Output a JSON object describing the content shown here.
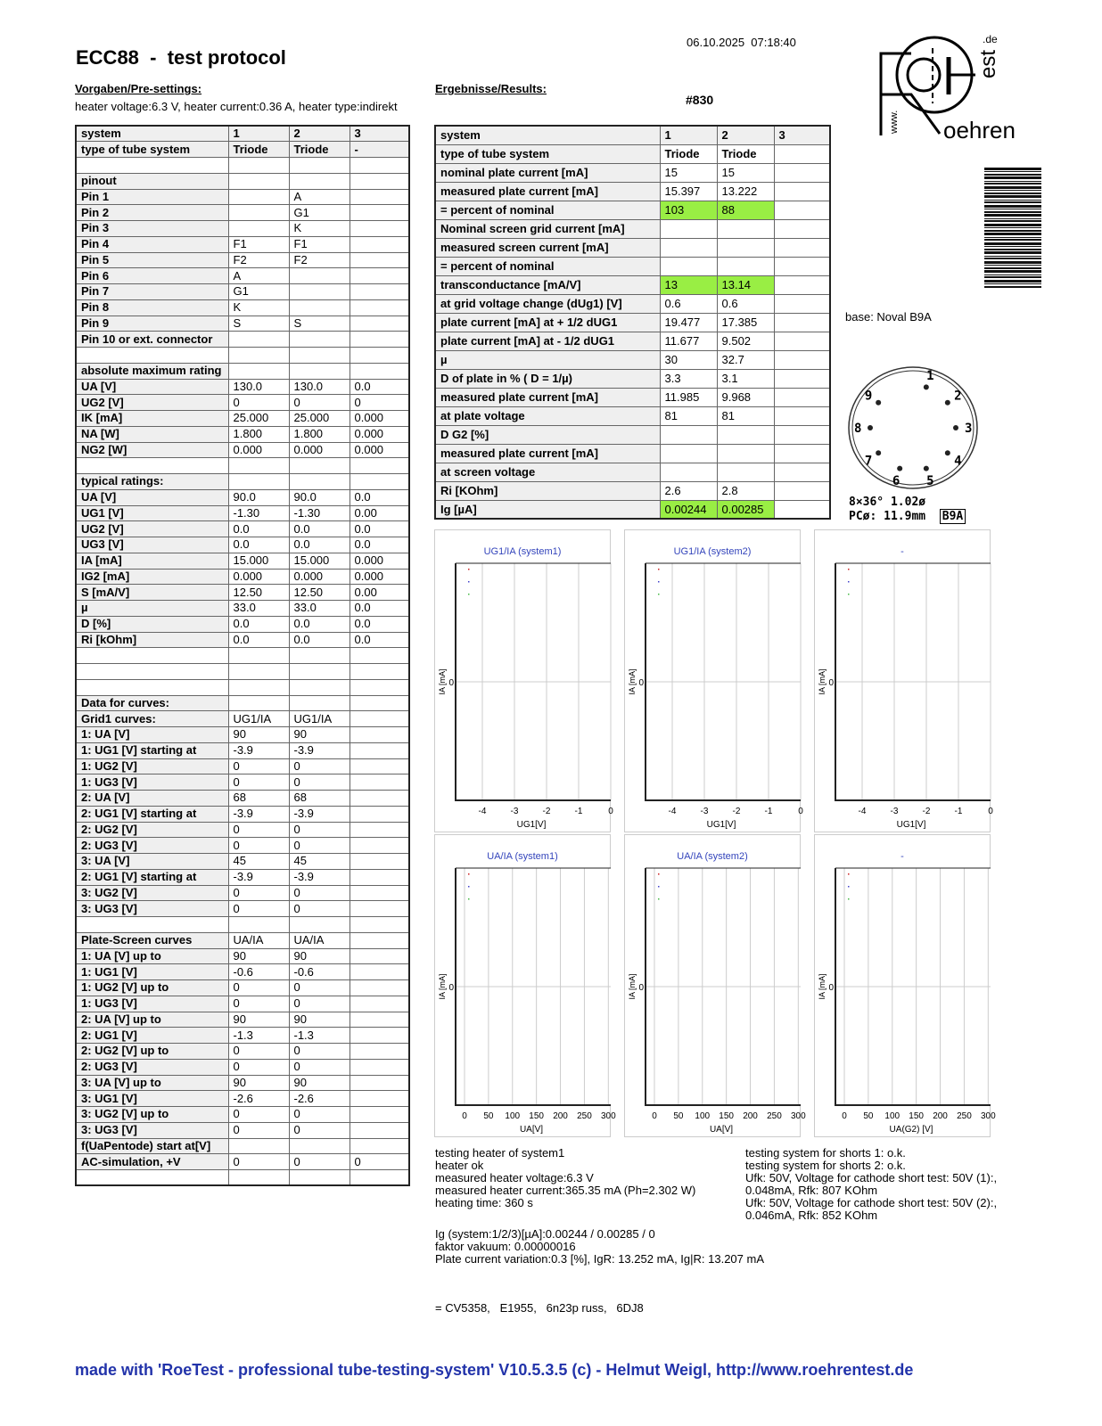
{
  "header": {
    "title": "ECC88  -  test protocol",
    "datetime": "06.10.2025  07:18:40",
    "serial": "#830"
  },
  "presettings": {
    "heading": "Vorgaben/Pre-settings:",
    "line": "heater voltage:6.3 V, heater current:0.36 A, heater type:indirekt"
  },
  "results_heading": "Ergebnisse/Results:",
  "left_table": [
    [
      "system",
      "1",
      "2",
      "3"
    ],
    [
      "type of tube system",
      "Triode",
      "Triode",
      "-"
    ],
    [
      "",
      "",
      "",
      ""
    ],
    [
      "pinout",
      "",
      "",
      ""
    ],
    [
      "Pin 1",
      "",
      "A",
      ""
    ],
    [
      "Pin 2",
      "",
      "G1",
      ""
    ],
    [
      "Pin 3",
      "",
      "K",
      ""
    ],
    [
      "Pin 4",
      "F1",
      "F1",
      ""
    ],
    [
      "Pin 5",
      "F2",
      "F2",
      ""
    ],
    [
      "Pin 6",
      "A",
      "",
      ""
    ],
    [
      "Pin 7",
      "G1",
      "",
      ""
    ],
    [
      "Pin 8",
      "K",
      "",
      ""
    ],
    [
      "Pin 9",
      "S",
      "S",
      ""
    ],
    [
      "Pin 10 or ext. connector",
      "",
      "",
      ""
    ],
    [
      "",
      "",
      "",
      ""
    ],
    [
      "absolute maximum rating",
      "",
      "",
      ""
    ],
    [
      "UA [V]",
      "130.0",
      "130.0",
      "0.0"
    ],
    [
      "UG2 [V]",
      "0",
      "0",
      "0"
    ],
    [
      "IK [mA]",
      "25.000",
      "25.000",
      "0.000"
    ],
    [
      "NA [W]",
      "1.800",
      "1.800",
      "0.000"
    ],
    [
      "NG2 [W]",
      "0.000",
      "0.000",
      "0.000"
    ],
    [
      "",
      "",
      "",
      ""
    ],
    [
      "typical ratings:",
      "",
      "",
      ""
    ],
    [
      "UA [V]",
      "90.0",
      "90.0",
      "0.0"
    ],
    [
      "UG1 [V]",
      "-1.30",
      "-1.30",
      "0.00"
    ],
    [
      "UG2 [V]",
      "0.0",
      "0.0",
      "0.0"
    ],
    [
      "UG3 [V]",
      "0.0",
      "0.0",
      "0.0"
    ],
    [
      "IA [mA]",
      "15.000",
      "15.000",
      "0.000"
    ],
    [
      "IG2 [mA]",
      "0.000",
      "0.000",
      "0.000"
    ],
    [
      "S [mA/V]",
      "12.50",
      "12.50",
      "0.00"
    ],
    [
      "µ",
      "33.0",
      "33.0",
      "0.0"
    ],
    [
      "D [%]",
      "0.0",
      "0.0",
      "0.0"
    ],
    [
      "Ri [kOhm]",
      "0.0",
      "0.0",
      "0.0"
    ],
    [
      "",
      "",
      "",
      ""
    ],
    [
      "",
      "",
      "",
      ""
    ],
    [
      "",
      "",
      "",
      ""
    ],
    [
      "Data for curves:",
      "",
      "",
      ""
    ],
    [
      "Grid1 curves:",
      "UG1/IA",
      "UG1/IA",
      ""
    ],
    [
      "1: UA [V]",
      "90",
      "90",
      ""
    ],
    [
      "1: UG1 [V] starting at",
      "-3.9",
      "-3.9",
      ""
    ],
    [
      "1: UG2 [V]",
      "0",
      "0",
      ""
    ],
    [
      "1: UG3 [V]",
      "0",
      "0",
      ""
    ],
    [
      "2: UA [V]",
      "68",
      "68",
      ""
    ],
    [
      "2: UG1 [V] starting at",
      "-3.9",
      "-3.9",
      ""
    ],
    [
      "2: UG2 [V]",
      "0",
      "0",
      ""
    ],
    [
      "2: UG3 [V]",
      "0",
      "0",
      ""
    ],
    [
      "3: UA [V]",
      "45",
      "45",
      ""
    ],
    [
      "2: UG1 [V] starting at",
      "-3.9",
      "-3.9",
      ""
    ],
    [
      "3: UG2 [V]",
      "0",
      "0",
      ""
    ],
    [
      "3: UG3 [V]",
      "0",
      "0",
      ""
    ],
    [
      "",
      "",
      "",
      ""
    ],
    [
      "Plate-Screen curves",
      "UA/IA",
      "UA/IA",
      ""
    ],
    [
      "1: UA [V] up to",
      "90",
      "90",
      ""
    ],
    [
      "1: UG1 [V]",
      "-0.6",
      "-0.6",
      ""
    ],
    [
      "1: UG2 [V] up to",
      "0",
      "0",
      ""
    ],
    [
      "1: UG3 [V]",
      "0",
      "0",
      ""
    ],
    [
      "2: UA [V] up to",
      "90",
      "90",
      ""
    ],
    [
      "2: UG1 [V]",
      "-1.3",
      "-1.3",
      ""
    ],
    [
      "2: UG2 [V] up to",
      "0",
      "0",
      ""
    ],
    [
      "2: UG3 [V]",
      "0",
      "0",
      ""
    ],
    [
      "3: UA [V] up to",
      "90",
      "90",
      ""
    ],
    [
      "3: UG1 [V]",
      "-2.6",
      "-2.6",
      ""
    ],
    [
      "3: UG2 [V] up to",
      "0",
      "0",
      ""
    ],
    [
      "3: UG3 [V]",
      "0",
      "0",
      ""
    ],
    [
      "f(UaPentode) start at[V]",
      "",
      "",
      ""
    ],
    [
      "AC-simulation, +V",
      "0",
      "0",
      "0"
    ],
    [
      "",
      "",
      "",
      ""
    ]
  ],
  "right_table": [
    [
      "system",
      "1",
      "2",
      "3"
    ],
    [
      "type of tube system",
      "Triode",
      "Triode",
      ""
    ],
    [
      "nominal plate current [mA]",
      "15",
      "15",
      ""
    ],
    [
      "measured plate current [mA]",
      "15.397",
      "13.222",
      ""
    ],
    [
      "= percent of nominal",
      "103",
      "88",
      ""
    ],
    [
      "Nominal screen grid current [mA]",
      "",
      "",
      ""
    ],
    [
      "measured screen current [mA]",
      "",
      "",
      ""
    ],
    [
      "= percent of nominal",
      "",
      "",
      ""
    ],
    [
      "transconductance [mA/V]",
      "13",
      "13.14",
      ""
    ],
    [
      "at grid voltage change (dUg1) [V]",
      "0.6",
      "0.6",
      ""
    ],
    [
      "plate current [mA] at + 1/2 dUG1",
      "19.477",
      "17.385",
      ""
    ],
    [
      "plate current [mA] at - 1/2 dUG1",
      "11.677",
      "9.502",
      ""
    ],
    [
      "µ",
      "30",
      "32.7",
      ""
    ],
    [
      "D of plate in % ( D = 1/µ)",
      "3.3",
      "3.1",
      ""
    ],
    [
      "measured plate current [mA]",
      "11.985",
      "9.968",
      ""
    ],
    [
      "at plate voltage",
      "81",
      "81",
      ""
    ],
    [
      "D G2 [%]",
      "",
      "",
      ""
    ],
    [
      "measured plate current [mA]",
      "",
      "",
      ""
    ],
    [
      "at screen voltage",
      "",
      "",
      ""
    ],
    [
      "Ri [KOhm]",
      "2.6",
      "2.8",
      ""
    ],
    [
      "Ig [µA]",
      "0.00244",
      "0.00285",
      ""
    ]
  ],
  "highlight_color": "#99ee44",
  "highlight_rows": [
    4,
    8,
    20
  ],
  "logo": {
    "text": "www.Roehrentest.de"
  },
  "base": {
    "label": "base: Noval B9A",
    "pins": [
      "1",
      "2",
      "3",
      "4",
      "5",
      "6",
      "7",
      "8",
      "9"
    ],
    "spec1": "8×36°  1.02ø",
    "spec2": "PCø: 11.9mm",
    "badge": "B9A"
  },
  "chart_data": [
    {
      "type": "line",
      "title": "UG1/IA (system1)",
      "xlabel": "UG1[V]",
      "ylabel": "IA [mA]",
      "xticks": [
        "-4",
        "-3",
        "-2",
        "-1",
        "0"
      ],
      "yticks": [
        "0"
      ],
      "series": []
    },
    {
      "type": "line",
      "title": "UG1/IA (system2)",
      "xlabel": "UG1[V]",
      "ylabel": "IA [mA]",
      "xticks": [
        "-4",
        "-3",
        "-2",
        "-1",
        "0"
      ],
      "yticks": [
        "0"
      ],
      "series": []
    },
    {
      "type": "line",
      "title": "-",
      "xlabel": "UG1[V]",
      "ylabel": "IA [mA]",
      "xticks": [
        "-4",
        "-3",
        "-2",
        "-1",
        "0"
      ],
      "yticks": [
        "0"
      ],
      "series": []
    },
    {
      "type": "line",
      "title": "UA/IA (system1)",
      "xlabel": "UA[V]",
      "ylabel": "IA [mA]",
      "xticks": [
        "0",
        "50",
        "100",
        "150",
        "200",
        "250",
        "300"
      ],
      "yticks": [
        "0"
      ],
      "series": []
    },
    {
      "type": "line",
      "title": "UA/IA (system2)",
      "xlabel": "UA[V]",
      "ylabel": "IA [mA]",
      "xticks": [
        "0",
        "50",
        "100",
        "150",
        "200",
        "250",
        "300"
      ],
      "yticks": [
        "0"
      ],
      "series": []
    },
    {
      "type": "line",
      "title": "-",
      "xlabel": "UA(G2) [V]",
      "ylabel": "IA [mA]",
      "xticks": [
        "0",
        "50",
        "100",
        "150",
        "200",
        "250",
        "300"
      ],
      "yticks": [
        "0"
      ],
      "series": []
    }
  ],
  "notes": {
    "heater": "testing heater of system1\nheater ok\nmeasured heater voltage:6.3 V\nmeasured heater current:365.35 mA (Ph=2.302 W)\nheating time: 360 s",
    "shorts": "testing system for shorts 1: o.k.\ntesting system for shorts 2: o.k.\nUfk: 50V, Voltage for cathode short test: 50V (1):,\n0.048mA, Rfk: 807 KOhm\nUfk: 50V, Voltage for cathode short test: 50V (2):,\n0.046mA, Rfk: 852 KOhm",
    "ig": "Ig (system:1/2/3)[µA]:0.00244 / 0.00285 / 0\nfaktor vakuum: 0.00000016\nPlate current variation:0.3 [%], IgR: 13.252 mA, Ig|R: 13.207 mA",
    "equivalents": "= CV5358,   E1955,   6n23p russ,   6DJ8"
  },
  "footer": "made with 'RoeTest - professional tube-testing-system' V10.5.3.5 (c) - Helmut Weigl, http://www.roehrentest.de"
}
